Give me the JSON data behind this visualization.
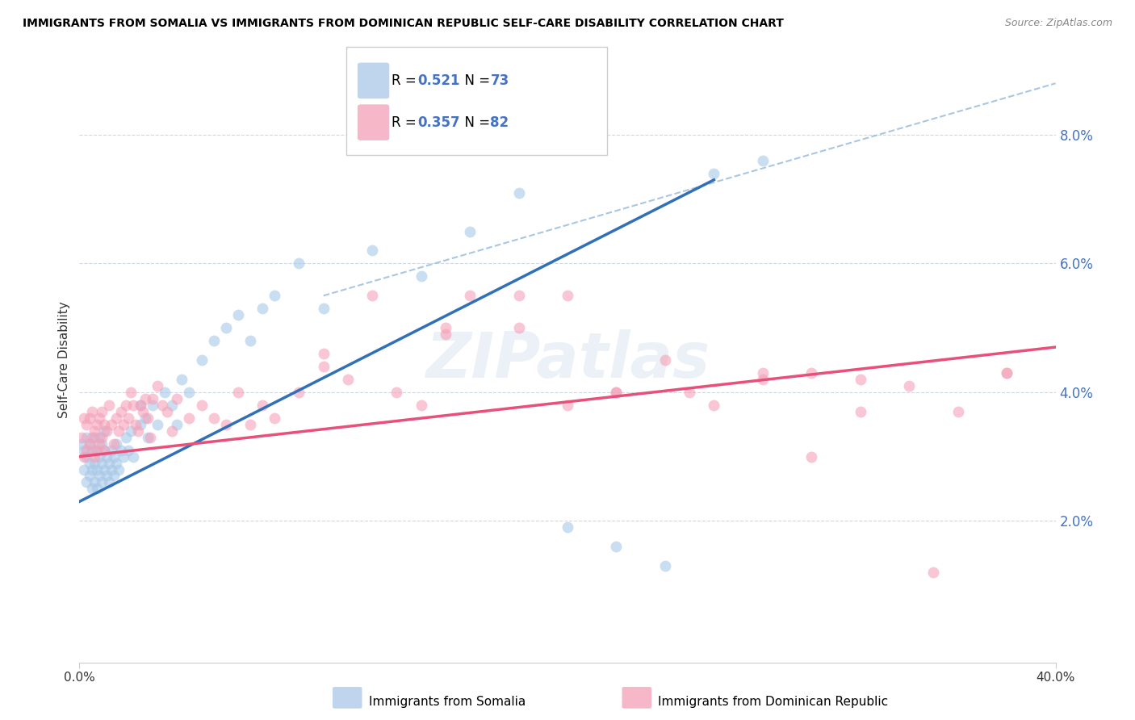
{
  "title": "IMMIGRANTS FROM SOMALIA VS IMMIGRANTS FROM DOMINICAN REPUBLIC SELF-CARE DISABILITY CORRELATION CHART",
  "source": "Source: ZipAtlas.com",
  "ylabel": "Self-Care Disability",
  "ytick_labels": [
    "2.0%",
    "4.0%",
    "6.0%",
    "8.0%"
  ],
  "ytick_values": [
    0.02,
    0.04,
    0.06,
    0.08
  ],
  "xlim": [
    0.0,
    0.4
  ],
  "ylim": [
    -0.002,
    0.092
  ],
  "somalia_color": "#a8c8e8",
  "dr_color": "#f4a0b8",
  "somalia_line_color": "#3070b8",
  "dr_line_color": "#e8507a",
  "dashed_line_color": "#a0c0e0",
  "watermark": "ZIPatlas",
  "somalia_R": "0.521",
  "somalia_N": "73",
  "dr_R": "0.357",
  "dr_N": "82",
  "somalia_line_x0": 0.0,
  "somalia_line_y0": 0.023,
  "somalia_line_x1": 0.26,
  "somalia_line_y1": 0.073,
  "dr_line_x0": 0.0,
  "dr_line_y0": 0.03,
  "dr_line_x1": 0.4,
  "dr_line_y1": 0.047,
  "dash_line_x0": 0.1,
  "dash_line_y0": 0.055,
  "dash_line_x1": 0.4,
  "dash_line_y1": 0.088,
  "somalia_x": [
    0.001,
    0.002,
    0.002,
    0.003,
    0.003,
    0.003,
    0.004,
    0.004,
    0.004,
    0.005,
    0.005,
    0.005,
    0.006,
    0.006,
    0.006,
    0.007,
    0.007,
    0.007,
    0.008,
    0.008,
    0.008,
    0.009,
    0.009,
    0.009,
    0.01,
    0.01,
    0.01,
    0.011,
    0.011,
    0.012,
    0.012,
    0.013,
    0.013,
    0.014,
    0.014,
    0.015,
    0.015,
    0.016,
    0.017,
    0.018,
    0.019,
    0.02,
    0.021,
    0.022,
    0.025,
    0.025,
    0.027,
    0.028,
    0.03,
    0.032,
    0.035,
    0.038,
    0.04,
    0.042,
    0.045,
    0.05,
    0.055,
    0.06,
    0.065,
    0.07,
    0.075,
    0.08,
    0.09,
    0.1,
    0.12,
    0.14,
    0.16,
    0.18,
    0.2,
    0.22,
    0.24,
    0.26,
    0.28
  ],
  "somalia_y": [
    0.032,
    0.028,
    0.031,
    0.026,
    0.03,
    0.033,
    0.027,
    0.029,
    0.032,
    0.025,
    0.028,
    0.031,
    0.026,
    0.029,
    0.033,
    0.025,
    0.028,
    0.031,
    0.027,
    0.03,
    0.033,
    0.026,
    0.029,
    0.032,
    0.028,
    0.031,
    0.034,
    0.027,
    0.03,
    0.026,
    0.029,
    0.028,
    0.031,
    0.027,
    0.03,
    0.029,
    0.032,
    0.028,
    0.031,
    0.03,
    0.033,
    0.031,
    0.034,
    0.03,
    0.035,
    0.038,
    0.036,
    0.033,
    0.038,
    0.035,
    0.04,
    0.038,
    0.035,
    0.042,
    0.04,
    0.045,
    0.048,
    0.05,
    0.052,
    0.048,
    0.053,
    0.055,
    0.06,
    0.053,
    0.062,
    0.058,
    0.065,
    0.071,
    0.019,
    0.016,
    0.013,
    0.074,
    0.076
  ],
  "dr_x": [
    0.001,
    0.002,
    0.002,
    0.003,
    0.003,
    0.004,
    0.004,
    0.005,
    0.005,
    0.006,
    0.006,
    0.007,
    0.007,
    0.008,
    0.008,
    0.009,
    0.009,
    0.01,
    0.01,
    0.011,
    0.012,
    0.013,
    0.014,
    0.015,
    0.016,
    0.017,
    0.018,
    0.019,
    0.02,
    0.021,
    0.022,
    0.023,
    0.024,
    0.025,
    0.026,
    0.027,
    0.028,
    0.029,
    0.03,
    0.032,
    0.034,
    0.036,
    0.038,
    0.04,
    0.045,
    0.05,
    0.055,
    0.06,
    0.065,
    0.07,
    0.075,
    0.08,
    0.09,
    0.1,
    0.11,
    0.12,
    0.13,
    0.14,
    0.15,
    0.16,
    0.18,
    0.2,
    0.22,
    0.24,
    0.26,
    0.28,
    0.3,
    0.32,
    0.34,
    0.36,
    0.38,
    0.2,
    0.25,
    0.1,
    0.15,
    0.22,
    0.18,
    0.28,
    0.3,
    0.32,
    0.35,
    0.38
  ],
  "dr_y": [
    0.033,
    0.03,
    0.036,
    0.031,
    0.035,
    0.032,
    0.036,
    0.033,
    0.037,
    0.03,
    0.034,
    0.031,
    0.035,
    0.032,
    0.036,
    0.033,
    0.037,
    0.031,
    0.035,
    0.034,
    0.038,
    0.035,
    0.032,
    0.036,
    0.034,
    0.037,
    0.035,
    0.038,
    0.036,
    0.04,
    0.038,
    0.035,
    0.034,
    0.038,
    0.037,
    0.039,
    0.036,
    0.033,
    0.039,
    0.041,
    0.038,
    0.037,
    0.034,
    0.039,
    0.036,
    0.038,
    0.036,
    0.035,
    0.04,
    0.035,
    0.038,
    0.036,
    0.04,
    0.044,
    0.042,
    0.055,
    0.04,
    0.038,
    0.05,
    0.055,
    0.05,
    0.038,
    0.04,
    0.045,
    0.038,
    0.042,
    0.03,
    0.042,
    0.041,
    0.037,
    0.043,
    0.055,
    0.04,
    0.046,
    0.049,
    0.04,
    0.055,
    0.043,
    0.043,
    0.037,
    0.012,
    0.043
  ]
}
